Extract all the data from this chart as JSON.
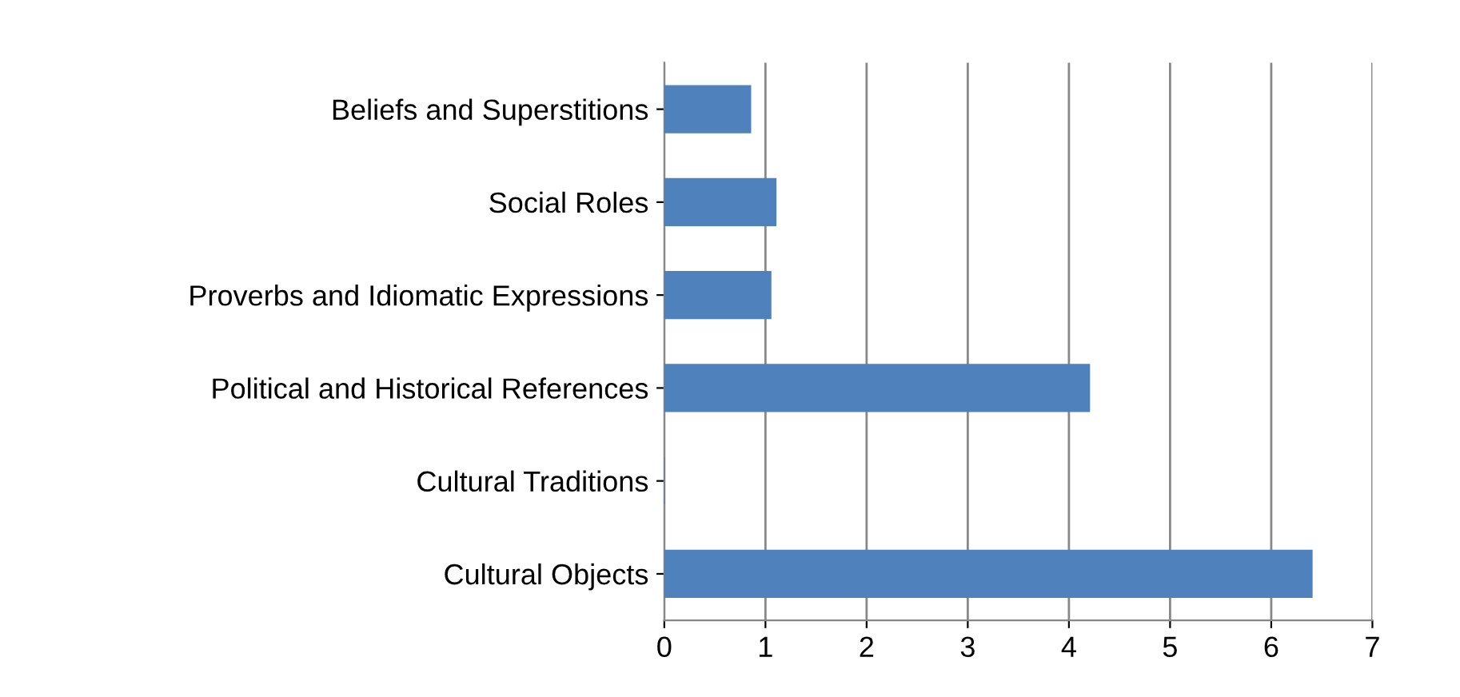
{
  "chart_data": {
    "type": "bar",
    "orientation": "horizontal",
    "categories": [
      "Beliefs and Superstitions",
      "Social Roles",
      "Proverbs and Idiomatic Expressions",
      "Political and Historical References",
      "Cultural Traditions",
      "Cultural Objects"
    ],
    "values": [
      0.85,
      1.1,
      1.05,
      4.2,
      0,
      6.4
    ],
    "color": "#4f81bd",
    "xlim": [
      0,
      7
    ],
    "xticks": [
      0,
      1,
      2,
      3,
      4,
      5,
      6,
      7
    ],
    "grid": "x"
  }
}
